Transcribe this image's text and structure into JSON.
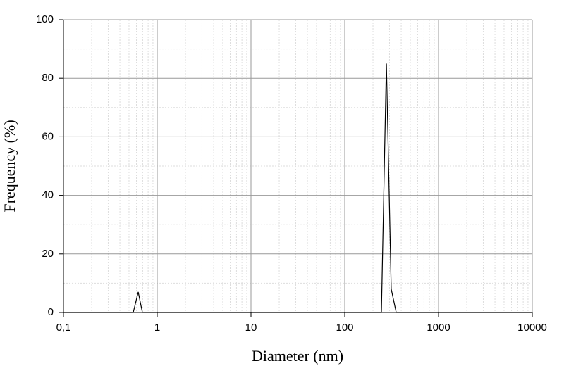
{
  "chart_data": {
    "type": "line",
    "x_label": "Diameter (nm)",
    "y_label": "Frequency (%)",
    "x": [
      0.1,
      0.555,
      0.627,
      0.695,
      246,
      278,
      313,
      354,
      10000
    ],
    "series": [
      {
        "color": "#000000",
        "values": [
          0,
          0,
          7,
          0,
          0,
          85,
          8,
          0,
          0
        ]
      }
    ],
    "xscale": "log",
    "xlim": [
      0.1,
      10000
    ],
    "xticks": [
      {
        "value": 0.1,
        "label": "0,1"
      },
      1,
      10,
      100,
      1000,
      10000
    ],
    "ylim": [
      0,
      100
    ],
    "yticks": [
      0,
      20,
      40,
      60,
      80,
      100
    ],
    "grid": true
  }
}
